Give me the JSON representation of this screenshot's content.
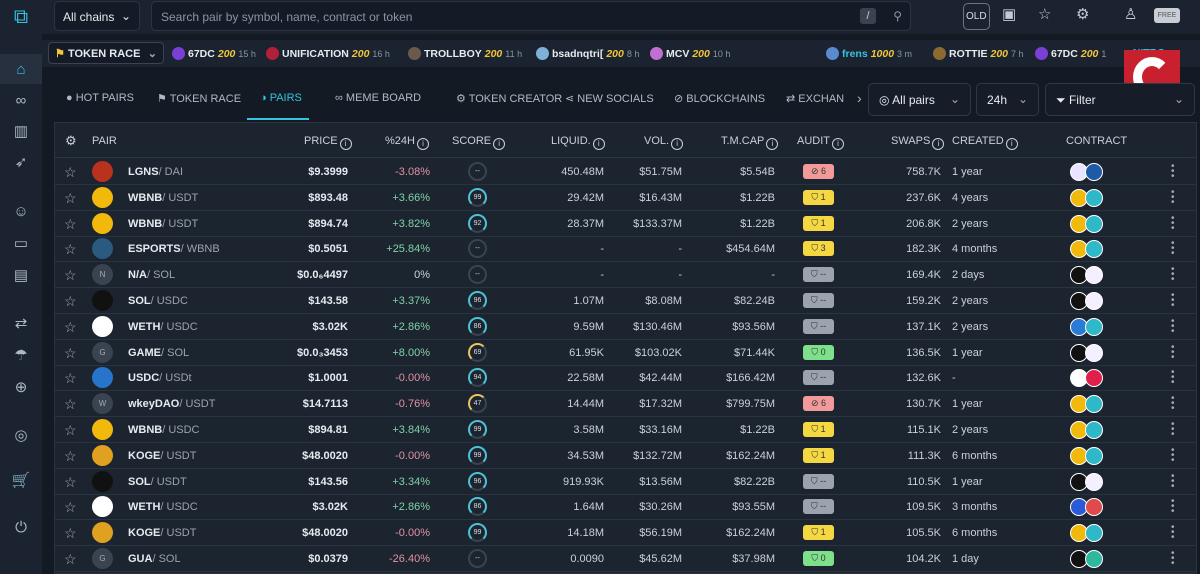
{
  "top": {
    "chains": "All chains",
    "search_placeholder": "Search pair by symbol, name, contract or token",
    "slash": "/",
    "old": "OLD",
    "free": "FREE"
  },
  "ticker": {
    "label": "TOKEN RACE",
    "items": [
      {
        "name": "67DC",
        "amount": "200",
        "age": "15 h",
        "color": "#7b3fd6"
      },
      {
        "name": "UNIFICATION",
        "amount": "200",
        "age": "16 h",
        "color": "#b0203a"
      },
      {
        "name": "TROLLBOY",
        "amount": "200",
        "age": "11 h",
        "color": "#6b5a4a"
      },
      {
        "name": "bsadnqtri[",
        "amount": "200",
        "age": "8 h",
        "color": "#7fb0d8"
      },
      {
        "name": "MCV",
        "amount": "200",
        "age": "10 h",
        "color": "#c070d0"
      },
      {
        "name": "frens",
        "amount": "1000",
        "age": "3 m",
        "color": "#5a8ad0"
      },
      {
        "name": "ROTTIE",
        "amount": "200",
        "age": "7 h",
        "color": "#8a6a30"
      },
      {
        "name": "67DC",
        "amount": "200",
        "age": "1",
        "color": "#7b3fd6"
      }
    ],
    "nitro": "NITRO"
  },
  "logo_letter": "C",
  "tabs": [
    "HOT PAIRS",
    "TOKEN RACE",
    "PAIRS",
    "MEME BOARD",
    "TOKEN CREATOR",
    "NEW SOCIALS",
    "BLOCKCHAINS",
    "EXCHAN"
  ],
  "active_tab": "PAIRS",
  "filters": {
    "pairs": "All pairs",
    "period": "24h",
    "filter": "Filter"
  },
  "columns": {
    "pair": "PAIR",
    "price": "PRICE",
    "change": "%24H",
    "score": "SCORE",
    "liquid": "LIQUID.",
    "vol": "VOL.",
    "tmcap": "T.M.CAP",
    "audit": "AUDIT",
    "swaps": "SWAPS",
    "created": "CREATED",
    "contract": "CONTRACT"
  },
  "rows": [
    {
      "base": "LGNS",
      "quote": "/ DAI",
      "price": "$9.3999",
      "change": "-3.08%",
      "score": "--",
      "liquid": "450.48M",
      "vol": "$51.75M",
      "tmcap": "$5.54B",
      "audit": "6",
      "audit_type": "red",
      "swaps": "758.7K",
      "created": "1 year",
      "icon": "#b8321e",
      "ct": [
        "#e9e4ff",
        "#1e5aa8"
      ]
    },
    {
      "base": "WBNB",
      "quote": "/ USDT",
      "price": "$893.48",
      "change": "+3.66%",
      "score": "99",
      "liquid": "29.42M",
      "vol": "$16.43M",
      "tmcap": "$1.22B",
      "audit": "1",
      "audit_type": "yellow",
      "swaps": "237.6K",
      "created": "4 years",
      "icon": "#f0b90b",
      "ct": [
        "#f0b90b",
        "#2fb8c8"
      ]
    },
    {
      "base": "WBNB",
      "quote": "/ USDT",
      "price": "$894.74",
      "change": "+3.82%",
      "score": "92",
      "liquid": "28.37M",
      "vol": "$133.37M",
      "tmcap": "$1.22B",
      "audit": "1",
      "audit_type": "yellow",
      "swaps": "206.8K",
      "created": "2 years",
      "icon": "#f0b90b",
      "ct": [
        "#f0b90b",
        "#2fb8c8"
      ]
    },
    {
      "base": "ESPORTS",
      "quote": "/ WBNB",
      "price": "$0.5051",
      "change": "+25.84%",
      "score": "--",
      "liquid": "-",
      "vol": "-",
      "tmcap": "$454.64M",
      "audit": "3",
      "audit_type": "yellow",
      "swaps": "182.3K",
      "created": "4 months",
      "icon": "#2a5a80",
      "ct": [
        "#f0b90b",
        "#2fb8c8"
      ]
    },
    {
      "base": "N/A",
      "quote": "/ SOL",
      "price": "$0.0₆4497",
      "change": "0%",
      "score": "--",
      "liquid": "-",
      "vol": "-",
      "tmcap": "-",
      "audit": "--",
      "audit_type": "gray",
      "swaps": "169.4K",
      "created": "2 days",
      "icon": "#3a4350",
      "letter": "N",
      "ct": [
        "#111",
        "#f4f0ff"
      ]
    },
    {
      "base": "SOL",
      "quote": "/ USDC",
      "price": "$143.58",
      "change": "+3.37%",
      "score": "96",
      "liquid": "1.07M",
      "vol": "$8.08M",
      "tmcap": "$82.24B",
      "audit": "--",
      "audit_type": "gray",
      "swaps": "159.2K",
      "created": "2 years",
      "icon": "#111",
      "ct": [
        "#111",
        "#f4f0ff"
      ]
    },
    {
      "base": "WETH",
      "quote": "/ USDC",
      "price": "$3.02K",
      "change": "+2.86%",
      "score": "86",
      "liquid": "9.59M",
      "vol": "$130.46M",
      "tmcap": "$93.56M",
      "audit": "--",
      "audit_type": "gray",
      "swaps": "137.1K",
      "created": "2 years",
      "icon": "#fff",
      "ct": [
        "#2a7ad8",
        "#2fb8c8"
      ]
    },
    {
      "base": "GAME",
      "quote": "/ SOL",
      "price": "$0.0₃3453",
      "change": "+8.00%",
      "score": "69",
      "liquid": "61.95K",
      "vol": "$103.02K",
      "tmcap": "$71.44K",
      "audit": "0",
      "audit_type": "green",
      "swaps": "136.5K",
      "created": "1 year",
      "icon": "#3a4350",
      "letter": "G",
      "ct": [
        "#111",
        "#f4f0ff"
      ]
    },
    {
      "base": "USDC",
      "quote": "/ USDt",
      "price": "$1.0001",
      "change": "-0.00%",
      "score": "94",
      "liquid": "22.58M",
      "vol": "$42.44M",
      "tmcap": "$166.42M",
      "audit": "--",
      "audit_type": "gray",
      "swaps": "132.6K",
      "created": "-",
      "icon": "#2775ca",
      "ct": [
        "#fff",
        "#e0204a"
      ]
    },
    {
      "base": "wkeyDAO",
      "quote": "/ USDT",
      "price": "$14.7113",
      "change": "-0.76%",
      "score": "47",
      "liquid": "14.44M",
      "vol": "$17.32M",
      "tmcap": "$799.75M",
      "audit": "6",
      "audit_type": "red",
      "swaps": "130.7K",
      "created": "1 year",
      "icon": "#3a4350",
      "letter": "W",
      "ct": [
        "#f0b90b",
        "#2fb8c8"
      ]
    },
    {
      "base": "WBNB",
      "quote": "/ USDC",
      "price": "$894.81",
      "change": "+3.84%",
      "score": "99",
      "liquid": "3.58M",
      "vol": "$33.16M",
      "tmcap": "$1.22B",
      "audit": "1",
      "audit_type": "yellow",
      "swaps": "115.1K",
      "created": "2 years",
      "icon": "#f0b90b",
      "ct": [
        "#f0b90b",
        "#2fb8c8"
      ]
    },
    {
      "base": "KOGE",
      "quote": "/ USDT",
      "price": "$48.0020",
      "change": "-0.00%",
      "score": "99",
      "liquid": "34.53M",
      "vol": "$132.72M",
      "tmcap": "$162.24M",
      "audit": "1",
      "audit_type": "yellow",
      "swaps": "111.3K",
      "created": "6 months",
      "icon": "#e0a020",
      "ct": [
        "#f0b90b",
        "#2fb8c8"
      ]
    },
    {
      "base": "SOL",
      "quote": "/ USDT",
      "price": "$143.56",
      "change": "+3.34%",
      "score": "96",
      "liquid": "919.93K",
      "vol": "$13.56M",
      "tmcap": "$82.22B",
      "audit": "--",
      "audit_type": "gray",
      "swaps": "110.5K",
      "created": "1 year",
      "icon": "#111",
      "ct": [
        "#111",
        "#f4f0ff"
      ]
    },
    {
      "base": "WETH",
      "quote": "/ USDC",
      "price": "$3.02K",
      "change": "+2.86%",
      "score": "86",
      "liquid": "1.64M",
      "vol": "$30.26M",
      "tmcap": "$93.55M",
      "audit": "--",
      "audit_type": "gray",
      "swaps": "109.5K",
      "created": "3 months",
      "icon": "#fff",
      "ct": [
        "#2a5ad8",
        "#e04a4a"
      ]
    },
    {
      "base": "KOGE",
      "quote": "/ USDT",
      "price": "$48.0020",
      "change": "-0.00%",
      "score": "99",
      "liquid": "14.18M",
      "vol": "$56.19M",
      "tmcap": "$162.24M",
      "audit": "1",
      "audit_type": "yellow",
      "swaps": "105.5K",
      "created": "6 months",
      "icon": "#e0a020",
      "ct": [
        "#f0b90b",
        "#2fb8c8"
      ]
    },
    {
      "base": "GUA",
      "quote": "/ SOL",
      "price": "$0.0379",
      "change": "-26.40%",
      "score": "--",
      "liquid": "0.0090",
      "vol": "$45.62M",
      "tmcap": "$37.98M",
      "audit": "0",
      "audit_type": "green",
      "swaps": "104.2K",
      "created": "1 day",
      "icon": "#3a4350",
      "letter": "G",
      "ct": [
        "#111",
        "#2fb8a0"
      ]
    }
  ],
  "colors": {
    "accent": "#35c3e0",
    "up": "#7fd3a5",
    "down": "#e0939f",
    "audit_red": "#f29a9a",
    "audit_yellow": "#f5d742",
    "audit_gray": "#9aa3ae",
    "audit_green": "#7ee08a"
  }
}
